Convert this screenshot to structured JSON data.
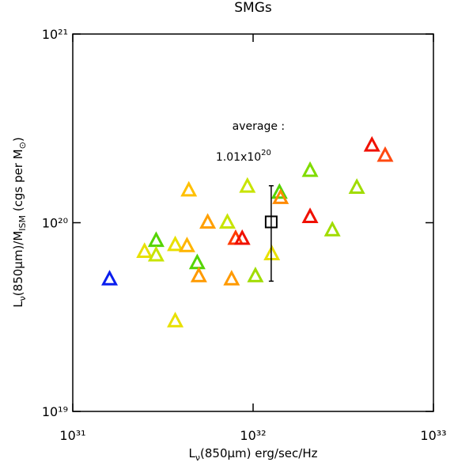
{
  "chart_data": {
    "type": "scatter",
    "title": "SMGs",
    "x_label": [
      "L",
      "ν",
      "(850μm) erg/sec/Hz"
    ],
    "y_label": [
      "L",
      "ν",
      "(850μm)/M",
      "ISM",
      " (cgs per M",
      "⊙",
      ")"
    ],
    "log_x": true,
    "log_y": true,
    "xlim": [
      1e+31,
      1e+33
    ],
    "ylim": [
      1e+19,
      1e+21
    ],
    "xticks": [
      {
        "value": 1e+31,
        "label": "10³¹"
      },
      {
        "value": 1e+32,
        "label": "10³²"
      },
      {
        "value": 1e+33,
        "label": "10³³"
      }
    ],
    "yticks": [
      {
        "value": 1e+19,
        "label": "10¹⁹"
      },
      {
        "value": 1e+20,
        "label": "10²⁰"
      },
      {
        "value": 1e+21,
        "label": "10²¹"
      }
    ],
    "x": [
      1.6e+31,
      2.5e+31,
      2.9e+31,
      2.9e+31,
      3.7e+31,
      4.3e+31,
      3.7e+31,
      4.4e+31,
      4.9e+31,
      5e+31,
      5.6e+31,
      7.2e+31,
      7.6e+31,
      8e+31,
      8.7e+31,
      9.3e+31,
      1.03e+32,
      1.27e+32,
      1.4e+32,
      1.42e+32,
      2.07e+32,
      2.07e+32,
      2.75e+32,
      3.76e+32,
      4.56e+32,
      5.4e+32
    ],
    "values": [
      5e+19,
      7e+19,
      8e+19,
      6.7e+19,
      7.6e+19,
      7.5e+19,
      3e+19,
      1.48e+20,
      6.1e+19,
      5.2e+19,
      1e+20,
      1e+20,
      5e+19,
      8.2e+19,
      8.2e+19,
      1.55e+20,
      5.2e+19,
      6.8e+19,
      1.44e+20,
      1.35e+20,
      1.88e+20,
      1.07e+20,
      9.1e+19,
      1.53e+20,
      2.56e+20,
      2.26e+20
    ],
    "colors": [
      "#0a1eee",
      "#e8e000",
      "#55d400",
      "#c8e400",
      "#e8e000",
      "#ffb400",
      "#e8e000",
      "#ffc000",
      "#55d400",
      "#ff9a00",
      "#ffa000",
      "#c8e400",
      "#ff9a00",
      "#ff3a00",
      "#f01000",
      "#c8e400",
      "#a0dc00",
      "#e8e000",
      "#55d400",
      "#ff8a00",
      "#80dc00",
      "#f01000",
      "#a0dc00",
      "#a0dc00",
      "#f01000",
      "#ff4a10"
    ],
    "average": {
      "label": "average :",
      "value_label": [
        "1.01x10",
        "20"
      ],
      "x": 1.26e+32,
      "y": 1.01e+20,
      "y_low": 4.9e+19,
      "y_high": 1.57e+20
    }
  }
}
